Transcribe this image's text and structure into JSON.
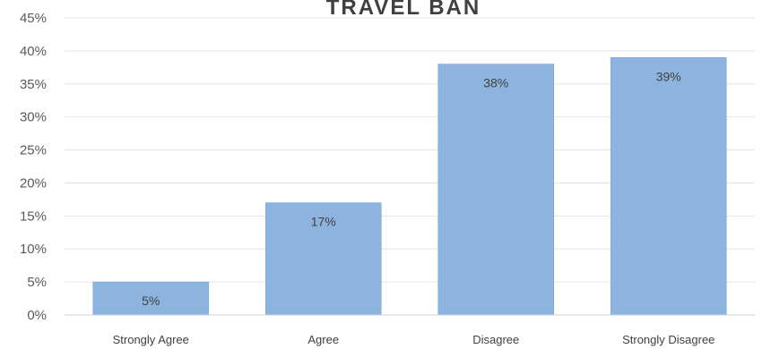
{
  "chart_data": {
    "type": "bar",
    "title": "TRAVEL BAN",
    "categories": [
      "Strongly Agree",
      "Agree",
      "Disagree",
      "Strongly Disagree"
    ],
    "values": [
      5,
      17,
      38,
      39
    ],
    "data_labels": [
      "5%",
      "17%",
      "38%",
      "39%"
    ],
    "ylim": [
      0,
      45
    ],
    "yticks": [
      0,
      5,
      10,
      15,
      20,
      25,
      30,
      35,
      40,
      45
    ],
    "ytick_labels": [
      "0%",
      "5%",
      "10%",
      "15%",
      "20%",
      "25%",
      "30%",
      "35%",
      "40%",
      "45%"
    ],
    "xlabel": "",
    "ylabel": "",
    "grid": true,
    "legend": "none",
    "colors": {
      "bar": "#8db4df",
      "bar_edge": "#7aa6d6"
    }
  }
}
